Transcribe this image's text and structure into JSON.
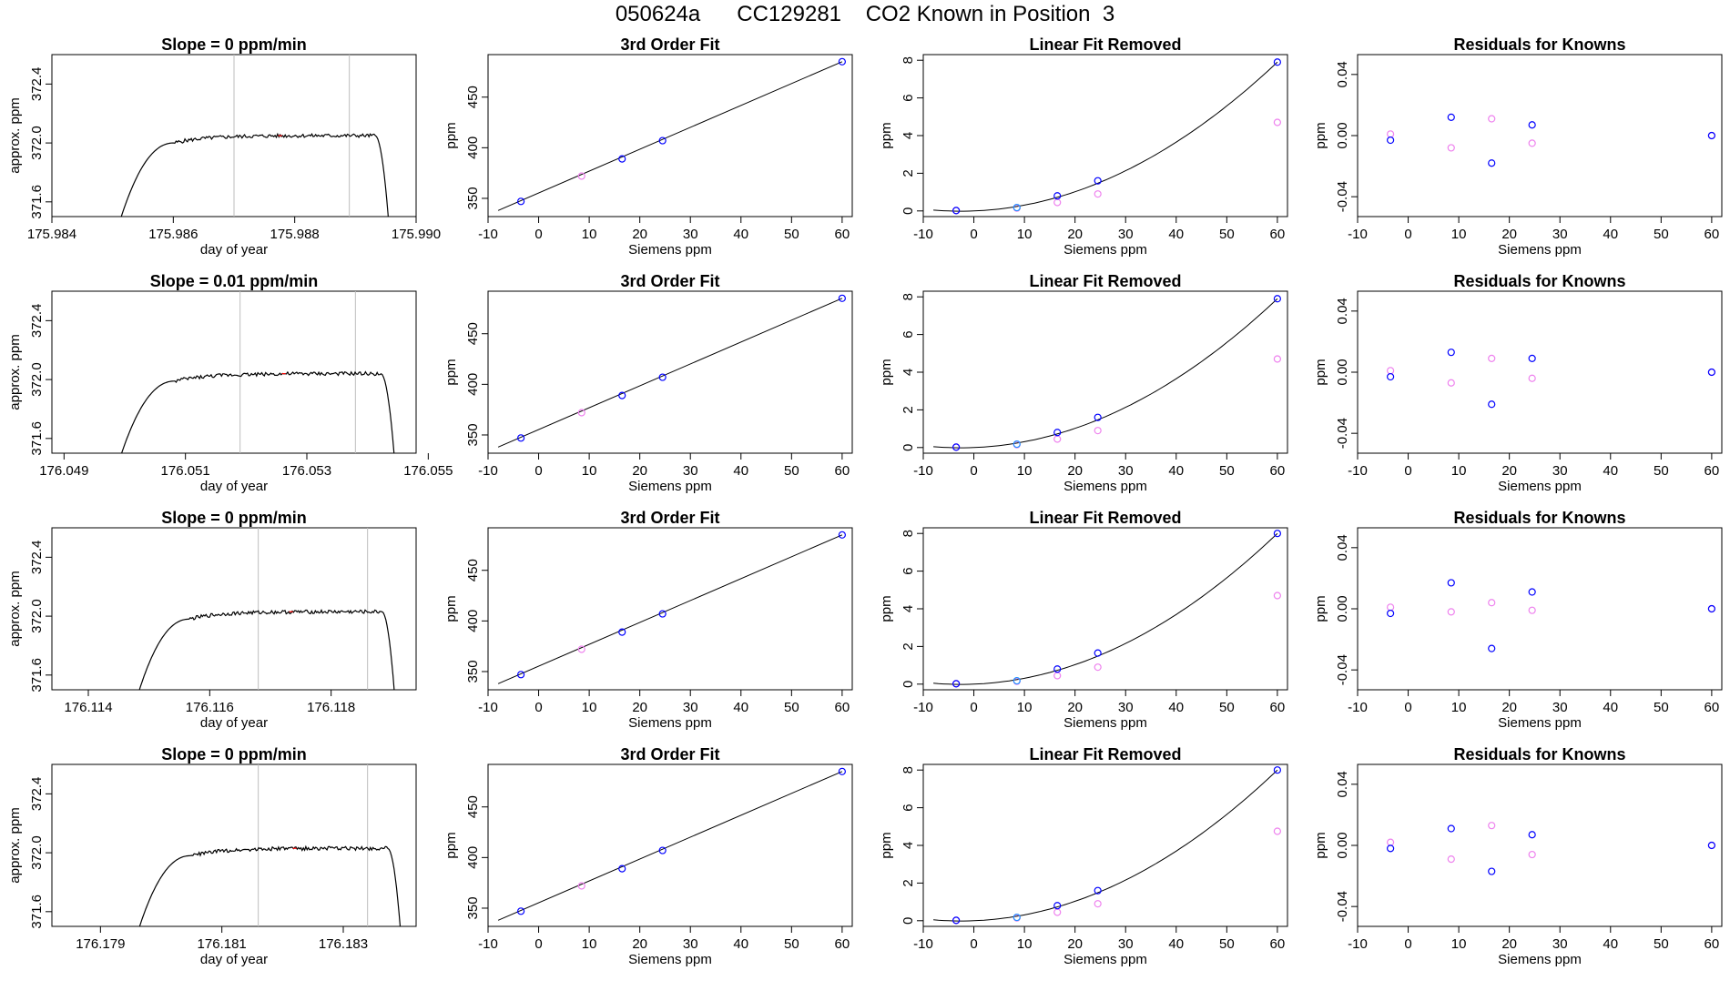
{
  "page": {
    "title": "050624a      CC129281    CO2 Known in Position  3"
  },
  "colors": {
    "line": "#000000",
    "vline": "#bebebe",
    "red": "#ff0000",
    "blue": "#0000ff",
    "magenta": "#ee82ee",
    "cyan": "#1e90ff"
  },
  "chart_data": [
    {
      "type": "line",
      "title": "Slope =  0  ppm/min",
      "xlabel": "day of year",
      "ylabel": "approx. ppm",
      "xlim": [
        175.984,
        175.99
      ],
      "ylim": [
        371.5,
        372.6
      ],
      "xticks": [
        "175.984",
        "175.986",
        "175.988",
        "175.990"
      ],
      "yticks": [
        "371.6",
        "372.0",
        "372.4"
      ],
      "trace": {
        "start": 175.985,
        "end": 175.9896,
        "plateau": 372.05
      },
      "vlines": [
        175.987,
        175.9889
      ]
    },
    {
      "type": "scatter",
      "title": "3rd Order Fit",
      "xlabel": "Siemens ppm",
      "ylabel": "ppm",
      "xlim": [
        -10,
        62
      ],
      "ylim": [
        332,
        492
      ],
      "xticks": [
        "-10",
        "0",
        "10",
        "20",
        "30",
        "40",
        "50",
        "60"
      ],
      "yticks": [
        "350",
        "400",
        "450"
      ],
      "points_x": [
        -3.5,
        8.5,
        16.5,
        24.5,
        60
      ],
      "points_y": [
        347,
        372,
        389,
        407,
        485
      ]
    },
    {
      "type": "scatter",
      "title": "Linear Fit Removed",
      "xlabel": "Siemens ppm",
      "ylabel": "ppm",
      "xlim": [
        -10,
        62
      ],
      "ylim": [
        -0.3,
        8.3
      ],
      "xticks": [
        "-10",
        "0",
        "10",
        "20",
        "30",
        "40",
        "50",
        "60"
      ],
      "yticks": [
        "0",
        "2",
        "4",
        "6",
        "8"
      ],
      "points_x": [
        -3.5,
        8.5,
        16.5,
        24.5,
        60
      ],
      "blue_y": [
        0.02,
        0.18,
        0.8,
        1.6,
        7.9
      ],
      "magenta_y": [
        0.02,
        0.15,
        0.45,
        0.9,
        4.7
      ]
    },
    {
      "type": "scatter",
      "title": "Residuals for Knowns",
      "xlabel": "Siemens ppm",
      "ylabel": "ppm",
      "xlim": [
        -10,
        62
      ],
      "ylim": [
        -0.053,
        0.053
      ],
      "xticks": [
        "-10",
        "0",
        "10",
        "20",
        "30",
        "40",
        "50",
        "60"
      ],
      "yticks": [
        "-0.04",
        "0.00",
        "0.04"
      ],
      "points_x": [
        -3.5,
        8.5,
        16.5,
        24.5,
        60
      ],
      "blue_y": [
        -0.003,
        0.012,
        -0.018,
        0.007,
        0.0
      ],
      "magenta_y": [
        0.001,
        -0.008,
        0.011,
        -0.005,
        0.0
      ]
    },
    {
      "type": "line",
      "title": "Slope =  0.01  ppm/min",
      "xlabel": "day of year",
      "ylabel": "approx. ppm",
      "xlim": [
        176.0488,
        176.0548
      ],
      "ylim": [
        371.5,
        372.6
      ],
      "xticks": [
        "176.049",
        "176.051",
        "176.053",
        "176.055"
      ],
      "yticks": [
        "371.6",
        "372.0",
        "372.4"
      ],
      "trace": {
        "start": 176.0498,
        "end": 176.0545,
        "plateau": 372.04
      },
      "vlines": [
        176.0519,
        176.0538
      ]
    },
    {
      "type": "scatter",
      "title": "3rd Order Fit",
      "xlabel": "Siemens ppm",
      "ylabel": "ppm",
      "xlim": [
        -10,
        62
      ],
      "ylim": [
        332,
        492
      ],
      "xticks": [
        "-10",
        "0",
        "10",
        "20",
        "30",
        "40",
        "50",
        "60"
      ],
      "yticks": [
        "350",
        "400",
        "450"
      ],
      "points_x": [
        -3.5,
        8.5,
        16.5,
        24.5,
        60
      ],
      "points_y": [
        347,
        372,
        389,
        407,
        485
      ]
    },
    {
      "type": "scatter",
      "title": "Linear Fit Removed",
      "xlabel": "Siemens ppm",
      "ylabel": "ppm",
      "xlim": [
        -10,
        62
      ],
      "ylim": [
        -0.3,
        8.3
      ],
      "xticks": [
        "-10",
        "0",
        "10",
        "20",
        "30",
        "40",
        "50",
        "60"
      ],
      "yticks": [
        "0",
        "2",
        "4",
        "6",
        "8"
      ],
      "points_x": [
        -3.5,
        8.5,
        16.5,
        24.5,
        60
      ],
      "blue_y": [
        0.02,
        0.18,
        0.8,
        1.6,
        7.9
      ],
      "magenta_y": [
        0.02,
        0.15,
        0.45,
        0.9,
        4.7
      ]
    },
    {
      "type": "scatter",
      "title": "Residuals for Knowns",
      "xlabel": "Siemens ppm",
      "ylabel": "ppm",
      "xlim": [
        -10,
        62
      ],
      "ylim": [
        -0.053,
        0.053
      ],
      "xticks": [
        "-10",
        "0",
        "10",
        "20",
        "30",
        "40",
        "50",
        "60"
      ],
      "yticks": [
        "-0.04",
        "0.00",
        "0.04"
      ],
      "points_x": [
        -3.5,
        8.5,
        16.5,
        24.5,
        60
      ],
      "blue_y": [
        -0.003,
        0.013,
        -0.021,
        0.009,
        0.0
      ],
      "magenta_y": [
        0.001,
        -0.007,
        0.009,
        -0.004,
        0.0
      ]
    },
    {
      "type": "line",
      "title": "Slope =  0  ppm/min",
      "xlabel": "day of year",
      "ylabel": "approx. ppm",
      "xlim": [
        176.1134,
        176.1194
      ],
      "ylim": [
        371.5,
        372.6
      ],
      "xticks": [
        "176.114",
        "176.116",
        "176.118"
      ],
      "yticks": [
        "371.6",
        "372.0",
        "372.4"
      ],
      "trace": {
        "start": 176.1147,
        "end": 176.1191,
        "plateau": 372.03
      },
      "vlines": [
        176.1168,
        176.1186
      ]
    },
    {
      "type": "scatter",
      "title": "3rd Order Fit",
      "xlabel": "Siemens ppm",
      "ylabel": "ppm",
      "xlim": [
        -10,
        62
      ],
      "ylim": [
        332,
        492
      ],
      "xticks": [
        "-10",
        "0",
        "10",
        "20",
        "30",
        "40",
        "50",
        "60"
      ],
      "yticks": [
        "350",
        "400",
        "450"
      ],
      "points_x": [
        -3.5,
        8.5,
        16.5,
        24.5,
        60
      ],
      "points_y": [
        347,
        372,
        389,
        407,
        485
      ]
    },
    {
      "type": "scatter",
      "title": "Linear Fit Removed",
      "xlabel": "Siemens ppm",
      "ylabel": "ppm",
      "xlim": [
        -10,
        62
      ],
      "ylim": [
        -0.3,
        8.3
      ],
      "xticks": [
        "-10",
        "0",
        "10",
        "20",
        "30",
        "40",
        "50",
        "60"
      ],
      "yticks": [
        "0",
        "2",
        "4",
        "6",
        "8"
      ],
      "points_x": [
        -3.5,
        8.5,
        16.5,
        24.5,
        60
      ],
      "blue_y": [
        0.02,
        0.18,
        0.8,
        1.65,
        8.0
      ],
      "magenta_y": [
        0.02,
        0.15,
        0.45,
        0.9,
        4.7
      ]
    },
    {
      "type": "scatter",
      "title": "Residuals for Knowns",
      "xlabel": "Siemens ppm",
      "ylabel": "ppm",
      "xlim": [
        -10,
        62
      ],
      "ylim": [
        -0.053,
        0.053
      ],
      "xticks": [
        "-10",
        "0",
        "10",
        "20",
        "30",
        "40",
        "50",
        "60"
      ],
      "yticks": [
        "-0.04",
        "0.00",
        "0.04"
      ],
      "points_x": [
        -3.5,
        8.5,
        16.5,
        24.5,
        60
      ],
      "blue_y": [
        -0.003,
        0.017,
        -0.026,
        0.011,
        0.0
      ],
      "magenta_y": [
        0.001,
        -0.002,
        0.004,
        -0.001,
        0.0
      ]
    },
    {
      "type": "line",
      "title": "Slope =  0  ppm/min",
      "xlabel": "day of year",
      "ylabel": "approx. ppm",
      "xlim": [
        176.1782,
        176.1842
      ],
      "ylim": [
        371.5,
        372.6
      ],
      "xticks": [
        "176.179",
        "176.181",
        "176.183"
      ],
      "yticks": [
        "371.6",
        "372.0",
        "372.4"
      ],
      "trace": {
        "start": 176.1795,
        "end": 176.184,
        "plateau": 372.03
      },
      "vlines": [
        176.1816,
        176.1834
      ]
    },
    {
      "type": "scatter",
      "title": "3rd Order Fit",
      "xlabel": "Siemens ppm",
      "ylabel": "ppm",
      "xlim": [
        -10,
        62
      ],
      "ylim": [
        332,
        492
      ],
      "xticks": [
        "-10",
        "0",
        "10",
        "20",
        "30",
        "40",
        "50",
        "60"
      ],
      "yticks": [
        "350",
        "400",
        "450"
      ],
      "points_x": [
        -3.5,
        8.5,
        16.5,
        24.5,
        60
      ],
      "points_y": [
        347,
        372,
        389,
        407,
        485
      ]
    },
    {
      "type": "scatter",
      "title": "Linear Fit Removed",
      "xlabel": "Siemens ppm",
      "ylabel": "ppm",
      "xlim": [
        -10,
        62
      ],
      "ylim": [
        -0.3,
        8.3
      ],
      "xticks": [
        "-10",
        "0",
        "10",
        "20",
        "30",
        "40",
        "50",
        "60"
      ],
      "yticks": [
        "0",
        "2",
        "4",
        "6",
        "8"
      ],
      "points_x": [
        -3.5,
        8.5,
        16.5,
        24.5,
        60
      ],
      "blue_y": [
        0.02,
        0.18,
        0.8,
        1.6,
        8.0
      ],
      "magenta_y": [
        0.02,
        0.15,
        0.45,
        0.9,
        4.75
      ]
    },
    {
      "type": "scatter",
      "title": "Residuals for Knowns",
      "xlabel": "Siemens ppm",
      "ylabel": "ppm",
      "xlim": [
        -10,
        62
      ],
      "ylim": [
        -0.053,
        0.053
      ],
      "xticks": [
        "-10",
        "0",
        "10",
        "20",
        "30",
        "40",
        "50",
        "60"
      ],
      "yticks": [
        "-0.04",
        "0.00",
        "0.04"
      ],
      "points_x": [
        -3.5,
        8.5,
        16.5,
        24.5,
        60
      ],
      "blue_y": [
        -0.002,
        0.011,
        -0.017,
        0.007,
        0.0
      ],
      "magenta_y": [
        0.002,
        -0.009,
        0.013,
        -0.006,
        0.0
      ]
    }
  ]
}
